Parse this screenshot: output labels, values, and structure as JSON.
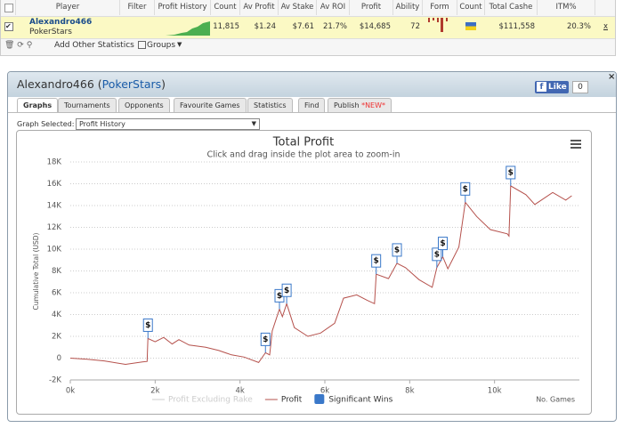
{
  "stats_table": {
    "headers": [
      "Player",
      "Filter",
      "Profit History",
      "Count",
      "Av Profit",
      "Av Stake",
      "Av ROI",
      "Profit",
      "Ability",
      "Form",
      "Count",
      "Total Cashe",
      "ITM%"
    ],
    "row": {
      "player": "Alexandro466",
      "site": "PokerStars",
      "count": "11,815",
      "av_profit": "$1.24",
      "av_stake": "$7.61",
      "av_roi": "21.7%",
      "profit": "$14,685",
      "ability": "72",
      "total_cashes": "$111,558",
      "itm": "20.3%",
      "remove": "x"
    }
  },
  "toolbar": {
    "add_stats": "Add Other Statistics",
    "groups": "Groups"
  },
  "panel": {
    "player": "Alexandro466",
    "site": "PokerStars",
    "like": "Like",
    "like_count": "0",
    "tabs": [
      "Graphs",
      "Tournaments",
      "Opponents",
      "Favourite Games",
      "Statistics",
      "Find",
      "Publish"
    ],
    "new_badge": "*NEW*",
    "graph_selected_label": "Graph Selected:",
    "graph_selected": "Profit History"
  },
  "chart_data": {
    "type": "line",
    "title": "Total Profit",
    "subtitle": "Click and drag inside the plot area to zoom-in",
    "y_label": "Cumulative Total (USD)",
    "x_label": "No. Games",
    "x": [
      0,
      400,
      800,
      1300,
      1700,
      1810,
      1830,
      2000,
      2200,
      2400,
      2560,
      2800,
      3190,
      3500,
      3800,
      4100,
      4440,
      4600,
      4700,
      4760,
      4930,
      5000,
      5100,
      5280,
      5600,
      5900,
      6230,
      6440,
      6750,
      7000,
      7170,
      7210,
      7500,
      7700,
      7900,
      8220,
      8530,
      8640,
      8780,
      8900,
      9160,
      9310,
      9580,
      9900,
      10300,
      10340,
      10380,
      10740,
      10950,
      11370,
      11680,
      11820
    ],
    "series": [
      {
        "name": "Profit Excluding Rake",
        "color": "#cccccc",
        "visible": false,
        "values": [
          null,
          null,
          null,
          null,
          null,
          null,
          null,
          null,
          null,
          null,
          null,
          null,
          null,
          null,
          null,
          null,
          null,
          null,
          null,
          null,
          null,
          null,
          null,
          null,
          null,
          null,
          null,
          null,
          null,
          null,
          null,
          null,
          null,
          null,
          null,
          null,
          null,
          null,
          null,
          null,
          null,
          null,
          null,
          null,
          null,
          null,
          null,
          null,
          null,
          null,
          null,
          null
        ]
      },
      {
        "name": "Profit",
        "color": "#b5514c",
        "visible": true,
        "values": [
          0,
          -100,
          -250,
          -570,
          -350,
          -300,
          1800,
          1500,
          1900,
          1300,
          1700,
          1200,
          1000,
          700,
          300,
          100,
          -400,
          500,
          300,
          2500,
          4500,
          3800,
          5000,
          2800,
          2000,
          2300,
          3200,
          5500,
          5800,
          5300,
          5000,
          7700,
          7300,
          8700,
          8300,
          7200,
          6500,
          8300,
          9300,
          8200,
          10200,
          14300,
          13000,
          11800,
          11400,
          11200,
          15800,
          15000,
          14100,
          15200,
          14500,
          14900
        ]
      }
    ],
    "flags": {
      "name": "Significant Wins",
      "color": "#3a78c9",
      "marker_label": "$",
      "x": [
        1830,
        4600,
        4930,
        5100,
        7210,
        7700,
        8640,
        8780,
        9310,
        10380
      ],
      "values": [
        1800,
        500,
        4500,
        5000,
        7700,
        8700,
        8300,
        9300,
        14300,
        15800
      ]
    },
    "xlim": [
      0,
      12000
    ],
    "ylim": [
      -2000,
      18000
    ],
    "xticks": [
      {
        "value": 0,
        "label": "0k"
      },
      {
        "value": 2000,
        "label": "2k"
      },
      {
        "value": 4000,
        "label": "4k"
      },
      {
        "value": 6000,
        "label": "6k"
      },
      {
        "value": 8000,
        "label": "8k"
      },
      {
        "value": 10000,
        "label": "10k"
      }
    ],
    "yticks": [
      {
        "value": -2000,
        "label": "-2K"
      },
      {
        "value": 0,
        "label": "0"
      },
      {
        "value": 2000,
        "label": "2K"
      },
      {
        "value": 4000,
        "label": "4K"
      },
      {
        "value": 6000,
        "label": "6K"
      },
      {
        "value": 8000,
        "label": "8K"
      },
      {
        "value": 10000,
        "label": "10K"
      },
      {
        "value": 12000,
        "label": "12K"
      },
      {
        "value": 14000,
        "label": "14K"
      },
      {
        "value": 16000,
        "label": "16K"
      },
      {
        "value": 18000,
        "label": "18K"
      }
    ],
    "grid": true
  }
}
